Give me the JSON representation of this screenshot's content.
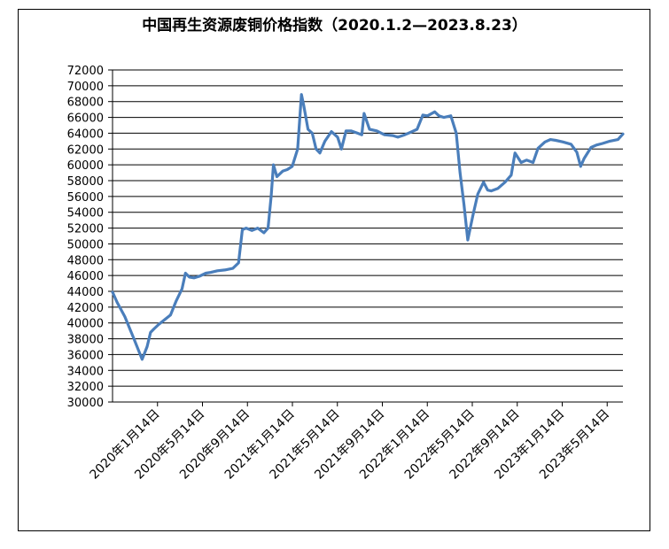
{
  "chart_data": {
    "type": "line",
    "title": "中国再生资源废铜价格指数（2020.1.2—2023.8.23）",
    "xlabel": "",
    "ylabel": "",
    "ylim": [
      30000,
      72000
    ],
    "y_ticks": [
      30000,
      32000,
      34000,
      36000,
      38000,
      40000,
      42000,
      44000,
      46000,
      48000,
      50000,
      52000,
      54000,
      56000,
      58000,
      60000,
      62000,
      64000,
      66000,
      68000,
      70000,
      72000
    ],
    "x_tick_labels": [
      "2020年1月14日",
      "2020年5月14日",
      "2020年9月14日",
      "2021年1月14日",
      "2021年5月14日",
      "2021年9月14日",
      "2022年1月14日",
      "2022年5月14日",
      "2022年9月14日",
      "2023年1月14日",
      "2023年5月14日"
    ],
    "x_range": [
      "2020-01-02",
      "2023-08-23"
    ],
    "grid": true,
    "series": [
      {
        "color": "#4a7ebb",
        "points": [
          [
            "2020-01-02",
            43900
          ],
          [
            "2020-01-14",
            42600
          ],
          [
            "2020-02-03",
            40800
          ],
          [
            "2020-02-25",
            38200
          ],
          [
            "2020-03-19",
            35400
          ],
          [
            "2020-04-01",
            37000
          ],
          [
            "2020-04-10",
            38800
          ],
          [
            "2020-04-20",
            39300
          ],
          [
            "2020-05-01",
            39800
          ],
          [
            "2020-05-14",
            40300
          ],
          [
            "2020-06-01",
            41000
          ],
          [
            "2020-06-15",
            42700
          ],
          [
            "2020-07-01",
            44300
          ],
          [
            "2020-07-10",
            46300
          ],
          [
            "2020-07-20",
            45800
          ],
          [
            "2020-08-01",
            45700
          ],
          [
            "2020-08-15",
            45900
          ],
          [
            "2020-09-01",
            46300
          ],
          [
            "2020-09-14",
            46400
          ],
          [
            "2020-10-01",
            46600
          ],
          [
            "2020-10-20",
            46700
          ],
          [
            "2020-11-10",
            46900
          ],
          [
            "2020-11-25",
            47600
          ],
          [
            "2020-12-05",
            51800
          ],
          [
            "2020-12-15",
            52000
          ],
          [
            "2020-12-30",
            51700
          ],
          [
            "2021-01-14",
            52000
          ],
          [
            "2021-01-30",
            51400
          ],
          [
            "2021-02-10",
            52000
          ],
          [
            "2021-02-18",
            56000
          ],
          [
            "2021-02-24",
            60000
          ],
          [
            "2021-03-05",
            58500
          ],
          [
            "2021-03-20",
            59200
          ],
          [
            "2021-04-01",
            59400
          ],
          [
            "2021-04-14",
            59800
          ],
          [
            "2021-04-28",
            62000
          ],
          [
            "2021-05-08",
            68900
          ],
          [
            "2021-05-14",
            67500
          ],
          [
            "2021-05-25",
            64500
          ],
          [
            "2021-06-05",
            64000
          ],
          [
            "2021-06-15",
            62000
          ],
          [
            "2021-06-25",
            61500
          ],
          [
            "2021-07-08",
            63000
          ],
          [
            "2021-07-25",
            64200
          ],
          [
            "2021-08-10",
            63500
          ],
          [
            "2021-08-20",
            62000
          ],
          [
            "2021-09-01",
            64300
          ],
          [
            "2021-09-14",
            64300
          ],
          [
            "2021-10-01",
            64000
          ],
          [
            "2021-10-12",
            63800
          ],
          [
            "2021-10-18",
            66500
          ],
          [
            "2021-11-01",
            64500
          ],
          [
            "2021-11-20",
            64300
          ],
          [
            "2021-12-10",
            63800
          ],
          [
            "2022-01-01",
            63700
          ],
          [
            "2022-01-14",
            63500
          ],
          [
            "2022-02-01",
            63800
          ],
          [
            "2022-02-20",
            64200
          ],
          [
            "2022-03-05",
            64500
          ],
          [
            "2022-03-20",
            66300
          ],
          [
            "2022-04-01",
            66200
          ],
          [
            "2022-04-20",
            66700
          ],
          [
            "2022-05-01",
            66200
          ],
          [
            "2022-05-14",
            66000
          ],
          [
            "2022-06-01",
            66200
          ],
          [
            "2022-06-15",
            64000
          ],
          [
            "2022-06-25",
            59000
          ],
          [
            "2022-07-05",
            55000
          ],
          [
            "2022-07-15",
            50500
          ],
          [
            "2022-07-28",
            53500
          ],
          [
            "2022-08-10",
            56300
          ],
          [
            "2022-08-25",
            57800
          ],
          [
            "2022-09-05",
            56800
          ],
          [
            "2022-09-14",
            56700
          ],
          [
            "2022-10-01",
            57000
          ],
          [
            "2022-10-20",
            57800
          ],
          [
            "2022-11-05",
            58700
          ],
          [
            "2022-11-15",
            61500
          ],
          [
            "2022-12-01",
            60300
          ],
          [
            "2022-12-15",
            60600
          ],
          [
            "2023-01-01",
            60300
          ],
          [
            "2023-01-14",
            62100
          ],
          [
            "2023-02-01",
            62900
          ],
          [
            "2023-02-15",
            63200
          ],
          [
            "2023-03-01",
            63100
          ],
          [
            "2023-03-20",
            62900
          ],
          [
            "2023-04-10",
            62600
          ],
          [
            "2023-04-25",
            61600
          ],
          [
            "2023-05-05",
            59800
          ],
          [
            "2023-05-14",
            60800
          ],
          [
            "2023-06-01",
            62200
          ],
          [
            "2023-06-15",
            62500
          ],
          [
            "2023-07-01",
            62700
          ],
          [
            "2023-07-20",
            63000
          ],
          [
            "2023-08-10",
            63200
          ],
          [
            "2023-08-23",
            63900
          ]
        ]
      }
    ]
  }
}
